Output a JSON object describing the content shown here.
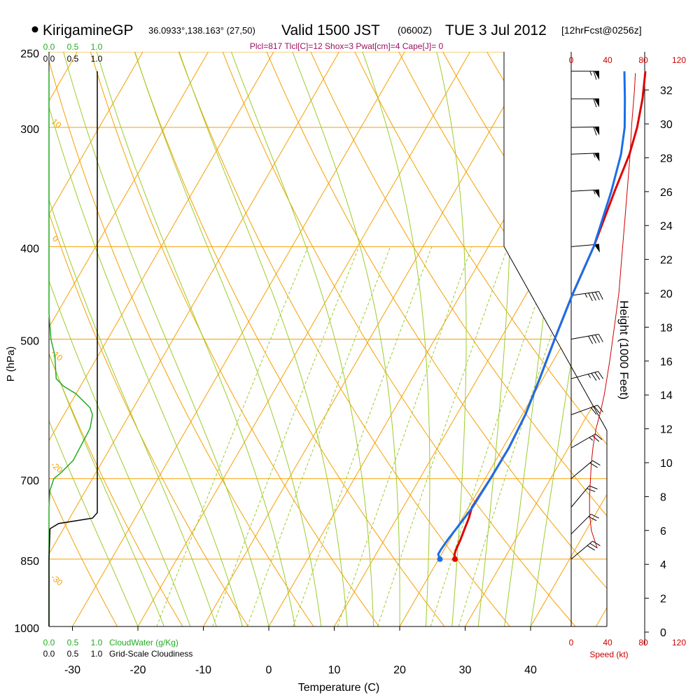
{
  "header": {
    "station": "KirigamineGP",
    "coords": "36.0933°,138.163° (27,50)",
    "valid": "Valid 1500 JST",
    "utc": "(0600Z)",
    "date": "TUE 3 Jul 2012",
    "forecast": "[12hrFcst@0256z]",
    "indices": "Plcl=817 Tlcl[C]=12 Shox=3 Pwat[cm]=4 Cape[J]= 0"
  },
  "colors": {
    "isotherm": "#f5a000",
    "dry_adiabat": "#f5a000",
    "moist_adiabat": "#9ccc2a",
    "mixing_ratio": "#9ccc2a",
    "temperature": "#e00000",
    "dewpoint": "#1a6ee8",
    "cloud_water": "#22aa22",
    "cloudiness": "#000000",
    "wind_speed": "#cc0000",
    "indices_text": "#9b1060"
  },
  "axes": {
    "xlabel": "Temperature (C)",
    "ylabel": "P (hPa)",
    "y2label": "Height (1000 Feet)",
    "speed_label": "Speed (kt)",
    "cloudwater_label": "CloudWater (g/Kg)",
    "cloudiness_label": "Grid-Scale Cloudiness",
    "cloud_ticks_green": [
      "0.0",
      "0.5",
      "1.0"
    ],
    "cloud_ticks_black": [
      "0.0",
      "0.5",
      "1.0"
    ],
    "speed_ticks": [
      "0",
      "40",
      "80",
      "120"
    ]
  },
  "chart_data": {
    "type": "line",
    "title": "KirigamineGP Valid 1500 JST (0600Z) TUE 3 Jul 2012",
    "x_ticks": [
      -30,
      -20,
      -10,
      0,
      10,
      20,
      30,
      40
    ],
    "xlim": [
      -34,
      49
    ],
    "p_ticks": [
      250,
      300,
      400,
      500,
      700,
      850,
      1000
    ],
    "height_ticks_kft": [
      0,
      2,
      4,
      6,
      8,
      10,
      12,
      14,
      16,
      18,
      20,
      22,
      24,
      26,
      28,
      30,
      32
    ],
    "dry_adiabat_labels": [
      "-10",
      "0",
      "10",
      "20",
      "30"
    ],
    "isotherm_labels": [
      "10",
      "0",
      "-10",
      "-20",
      "-30"
    ],
    "mixing_ratio_labels": [
      "1",
      "2",
      "3",
      "5",
      "8",
      "12",
      "20"
    ],
    "series": [
      {
        "name": "Temperature",
        "unit": "C",
        "p": [
          850,
          840,
          830,
          810,
          790,
          770,
          750,
          700,
          650,
          600,
          550,
          500,
          450,
          400,
          350,
          320,
          300,
          280,
          262
        ],
        "values": [
          22.5,
          22,
          21.8,
          21.6,
          21.3,
          21,
          20.5,
          20.8,
          20.9,
          20.5,
          19.5,
          18.3,
          17.1,
          16.1,
          14.4,
          13.4,
          12.2,
          10.5,
          8.5
        ]
      },
      {
        "name": "Dewpoint",
        "unit": "C",
        "p": [
          850,
          840,
          830,
          810,
          790,
          770,
          750,
          700,
          650,
          600,
          550,
          500,
          450,
          400,
          350,
          320,
          300,
          280,
          262
        ],
        "values": [
          20.2,
          19.5,
          19.5,
          19.7,
          20,
          20.3,
          20.6,
          20.8,
          20.9,
          20.5,
          19.5,
          18.3,
          17.1,
          16.1,
          13.9,
          12.1,
          10.3,
          7.8,
          5.3
        ]
      },
      {
        "name": "CloudWater (g/Kg)",
        "unit": "g/Kg",
        "p": [
          1000,
          850,
          750,
          720,
          700,
          690,
          670,
          620,
          600,
          590,
          570,
          560,
          550,
          520,
          500,
          470,
          450,
          400,
          300,
          262
        ],
        "values": [
          0,
          0,
          0,
          0.02,
          0.1,
          0.25,
          0.5,
          0.85,
          0.9,
          0.85,
          0.55,
          0.3,
          0.15,
          0.12,
          0.04,
          0,
          0,
          0,
          0,
          0
        ]
      },
      {
        "name": "Grid-Scale Cloudiness",
        "p": [
          1000,
          850,
          790,
          780,
          770,
          760,
          750,
          745,
          262
        ],
        "values": [
          0,
          0,
          0.02,
          0.2,
          0.9,
          1.0,
          1.0,
          1.0,
          1.0
        ]
      },
      {
        "name": "Speed (kt)",
        "unit": "kt",
        "height_kft": [
          5,
          5.5,
          6,
          7,
          8,
          9,
          10,
          11,
          12,
          13,
          14,
          16,
          18,
          20,
          22,
          24,
          26,
          28,
          30,
          32,
          33
        ],
        "values": [
          28,
          25,
          22,
          20,
          20,
          21,
          22,
          24,
          27,
          32,
          36,
          42,
          47,
          52,
          55,
          58,
          61,
          64,
          66,
          69,
          70
        ]
      }
    ],
    "wind_barbs": [
      {
        "p": 850,
        "speed_kt": 30,
        "dir_deg": 230
      },
      {
        "p": 800,
        "speed_kt": 22,
        "dir_deg": 225
      },
      {
        "p": 750,
        "speed_kt": 20,
        "dir_deg": 220
      },
      {
        "p": 700,
        "speed_kt": 22,
        "dir_deg": 230
      },
      {
        "p": 650,
        "speed_kt": 27,
        "dir_deg": 240
      },
      {
        "p": 600,
        "speed_kt": 32,
        "dir_deg": 250
      },
      {
        "p": 550,
        "speed_kt": 38,
        "dir_deg": 255
      },
      {
        "p": 500,
        "speed_kt": 42,
        "dir_deg": 260
      },
      {
        "p": 450,
        "speed_kt": 47,
        "dir_deg": 262
      },
      {
        "p": 400,
        "speed_kt": 52,
        "dir_deg": 265
      },
      {
        "p": 350,
        "speed_kt": 55,
        "dir_deg": 267
      },
      {
        "p": 320,
        "speed_kt": 58,
        "dir_deg": 268
      },
      {
        "p": 300,
        "speed_kt": 61,
        "dir_deg": 269
      },
      {
        "p": 280,
        "speed_kt": 64,
        "dir_deg": 270
      },
      {
        "p": 262,
        "speed_kt": 66,
        "dir_deg": 270
      }
    ]
  }
}
